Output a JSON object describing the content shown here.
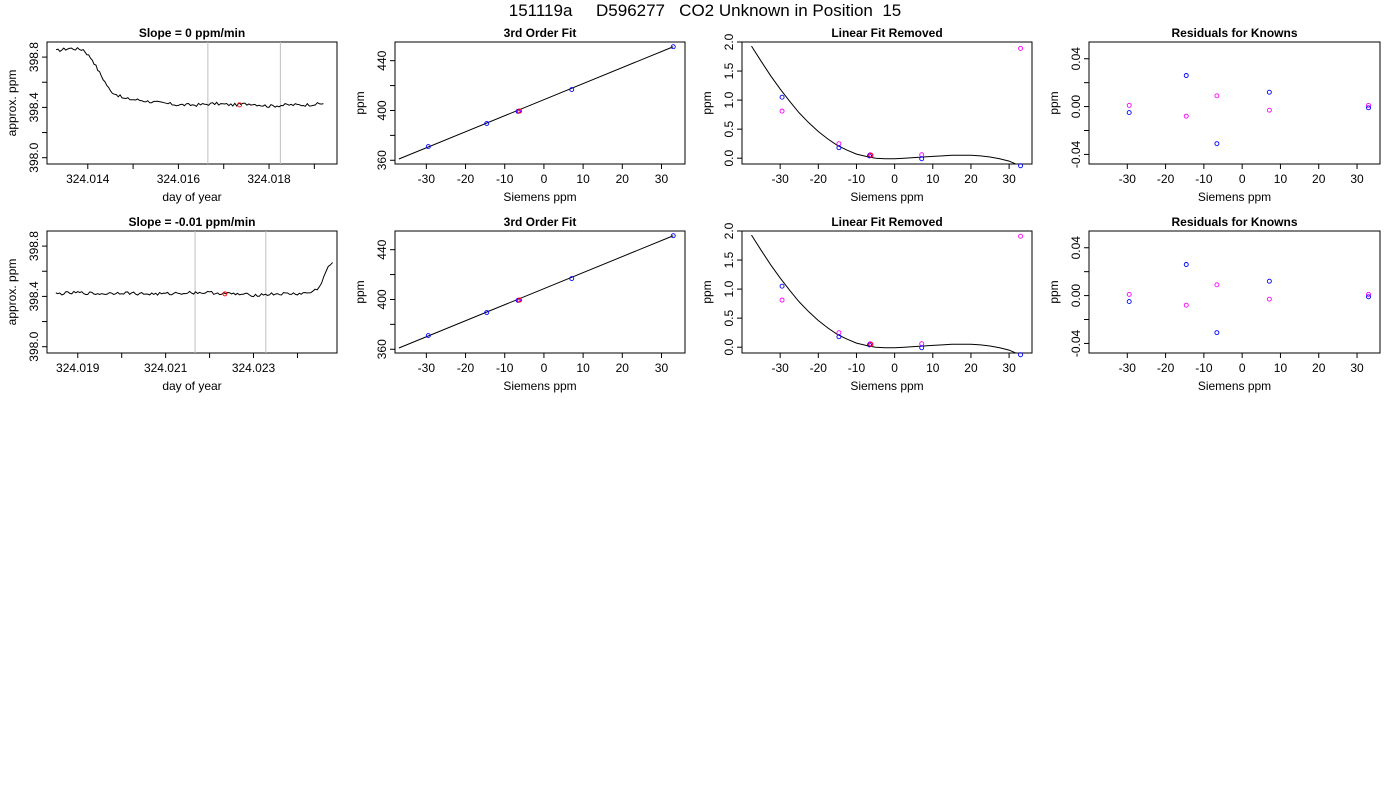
{
  "title": "151119a     D596277   CO2 Unknown in Position  15",
  "colors": {
    "known": "#0000ff",
    "prev": "#ff00ff",
    "unknown": "#ff0000",
    "vline": "#bebebe",
    "line": "#000000"
  },
  "chart_data": [
    {
      "type": "line",
      "title": "Slope =  0  ppm/min",
      "xlabel": "day of year",
      "ylabel": "approx. ppm",
      "xlim": [
        324.0131,
        324.0195
      ],
      "ylim": [
        397.95,
        398.92
      ],
      "xticks": [
        324.014,
        324.015,
        324.016,
        324.017,
        324.018,
        324.019
      ],
      "xtick_labels": [
        "324.014",
        "",
        "324.016",
        "",
        "324.018",
        ""
      ],
      "yticks": [
        398.0,
        398.2,
        398.4,
        398.6,
        398.8
      ],
      "ytick_labels": [
        "398.0",
        "",
        "398.4",
        "",
        "398.8"
      ],
      "vlines": [
        324.01665,
        324.01825
      ],
      "trace": [
        [
          324.0133,
          398.85
        ],
        [
          324.0136,
          398.87
        ],
        [
          324.0139,
          398.86
        ],
        [
          324.0141,
          398.78
        ],
        [
          324.0143,
          398.65
        ],
        [
          324.0145,
          398.53
        ],
        [
          324.0148,
          398.47
        ],
        [
          324.0151,
          398.46
        ],
        [
          324.0155,
          398.44
        ],
        [
          324.016,
          398.42
        ],
        [
          324.0164,
          398.42
        ],
        [
          324.0168,
          398.43
        ],
        [
          324.0172,
          398.42
        ],
        [
          324.0176,
          398.43
        ],
        [
          324.018,
          398.41
        ],
        [
          324.0184,
          398.42
        ],
        [
          324.0188,
          398.42
        ],
        [
          324.0192,
          398.43
        ]
      ],
      "noise": 0.012,
      "unknown_points": [
        [
          324.01735,
          398.42
        ]
      ]
    },
    {
      "type": "scatter",
      "title": "3rd Order Fit",
      "xlabel": "Siemens ppm",
      "ylabel": "ppm",
      "xlim": [
        -38,
        36
      ],
      "ylim": [
        357,
        455
      ],
      "xticks": [
        -30,
        -20,
        -10,
        0,
        10,
        20,
        30
      ],
      "xtick_labels": [
        "-30",
        "-20",
        "-10",
        "0",
        "10",
        "20",
        "30"
      ],
      "yticks": [
        360,
        380,
        400,
        420,
        440
      ],
      "ytick_labels": [
        "360",
        "",
        "400",
        "",
        "440"
      ],
      "line": [
        [
          -37,
          361
        ],
        [
          33,
          451.2
        ]
      ],
      "known_points": [
        [
          -29.5,
          371
        ],
        [
          -14.6,
          389.5
        ],
        [
          -6.6,
          399.3
        ],
        [
          7.1,
          416.8
        ],
        [
          33.0,
          451.2
        ]
      ],
      "prev_points": [
        [
          -6.4,
          399.5
        ]
      ],
      "unknown_points": [
        [
          -6.2,
          399.5
        ]
      ]
    },
    {
      "type": "scatter",
      "title": "Linear Fit Removed",
      "xlabel": "Siemens ppm",
      "ylabel": "ppm",
      "xlim": [
        -40,
        36
      ],
      "ylim": [
        -0.1,
        2.0
      ],
      "xticks": [
        -30,
        -20,
        -10,
        0,
        10,
        20,
        30
      ],
      "xtick_labels": [
        "-30",
        "-20",
        "-10",
        "0",
        "10",
        "20",
        "30"
      ],
      "yticks": [
        0.0,
        0.5,
        1.0,
        1.5,
        2.0
      ],
      "ytick_labels": [
        "0.0",
        "0.5",
        "1.0",
        "1.5",
        "2.0"
      ],
      "curve": [
        [
          -37.5,
          1.93
        ],
        [
          -35,
          1.67
        ],
        [
          -32.5,
          1.42
        ],
        [
          -30,
          1.19
        ],
        [
          -27.5,
          0.98
        ],
        [
          -25,
          0.78
        ],
        [
          -22.5,
          0.61
        ],
        [
          -20,
          0.46
        ],
        [
          -17.5,
          0.33
        ],
        [
          -15,
          0.22
        ],
        [
          -12.5,
          0.14
        ],
        [
          -10,
          0.07
        ],
        [
          -7.5,
          0.03
        ],
        [
          -5,
          0.0
        ],
        [
          -2.5,
          -0.01
        ],
        [
          0,
          -0.01
        ],
        [
          2.5,
          0.0
        ],
        [
          5,
          0.01
        ],
        [
          7.5,
          0.02
        ],
        [
          10,
          0.03
        ],
        [
          12.5,
          0.04
        ],
        [
          15,
          0.05
        ],
        [
          17.5,
          0.05
        ],
        [
          20,
          0.05
        ],
        [
          22.5,
          0.04
        ],
        [
          25,
          0.02
        ],
        [
          27.5,
          -0.01
        ],
        [
          30,
          -0.05
        ],
        [
          32.5,
          -0.12
        ]
      ],
      "known_points": [
        [
          -29.5,
          1.05
        ],
        [
          -14.6,
          0.18
        ],
        [
          -6.6,
          0.04
        ],
        [
          7.1,
          -0.01
        ],
        [
          33.0,
          -0.13
        ]
      ],
      "prev_points": [
        [
          -29.5,
          0.81
        ],
        [
          -14.6,
          0.25
        ],
        [
          -6.4,
          0.06
        ],
        [
          7.1,
          0.06
        ],
        [
          33.0,
          1.89
        ]
      ],
      "unknown_points": [
        [
          -6.2,
          0.05
        ]
      ]
    },
    {
      "type": "scatter",
      "title": "Residuals for Knowns",
      "xlabel": "Siemens ppm",
      "ylabel": "ppm",
      "xlim": [
        -40,
        36
      ],
      "ylim": [
        -0.048,
        0.054
      ],
      "xticks": [
        -30,
        -20,
        -10,
        0,
        10,
        20,
        30
      ],
      "xtick_labels": [
        "-30",
        "-20",
        "-10",
        "0",
        "10",
        "20",
        "30"
      ],
      "yticks": [
        -0.04,
        -0.02,
        0.0,
        0.02,
        0.04
      ],
      "ytick_labels": [
        "-0.04",
        "",
        "0.00",
        "",
        "0.04"
      ],
      "known_points": [
        [
          -29.5,
          -0.005
        ],
        [
          -14.6,
          0.026
        ],
        [
          -6.6,
          -0.031
        ],
        [
          7.1,
          0.012
        ],
        [
          33.0,
          -0.001
        ]
      ],
      "prev_points": [
        [
          -29.5,
          0.001
        ],
        [
          -14.6,
          -0.008
        ],
        [
          -6.6,
          0.009
        ],
        [
          7.1,
          -0.003
        ],
        [
          33.0,
          0.001
        ]
      ]
    },
    {
      "type": "line",
      "title": "Slope =  -0.01  ppm/min",
      "xlabel": "day of year",
      "ylabel": "approx. ppm",
      "xlim": [
        324.0183,
        324.0249
      ],
      "ylim": [
        397.95,
        398.92
      ],
      "xticks": [
        324.019,
        324.02,
        324.021,
        324.022,
        324.023,
        324.024
      ],
      "xtick_labels": [
        "324.019",
        "",
        "324.021",
        "",
        "324.023",
        ""
      ],
      "yticks": [
        398.0,
        398.2,
        398.4,
        398.6,
        398.8
      ],
      "ytick_labels": [
        "398.0",
        "",
        "398.4",
        "",
        "398.8"
      ],
      "vlines": [
        324.02167,
        324.02328
      ],
      "trace": [
        [
          324.0185,
          398.42
        ],
        [
          324.019,
          398.43
        ],
        [
          324.0195,
          398.42
        ],
        [
          324.02,
          398.43
        ],
        [
          324.0205,
          398.42
        ],
        [
          324.021,
          398.42
        ],
        [
          324.0215,
          398.43
        ],
        [
          324.022,
          398.43
        ],
        [
          324.0225,
          398.42
        ],
        [
          324.023,
          398.41
        ],
        [
          324.0235,
          398.42
        ],
        [
          324.024,
          398.42
        ],
        [
          324.0243,
          398.43
        ],
        [
          324.0245,
          398.47
        ],
        [
          324.0246,
          398.56
        ],
        [
          324.0247,
          398.63
        ],
        [
          324.0248,
          398.67
        ]
      ],
      "noise": 0.012,
      "unknown_points": [
        [
          324.02235,
          398.42
        ]
      ]
    },
    {
      "type": "scatter",
      "title": "3rd Order Fit",
      "xlabel": "Siemens ppm",
      "ylabel": "ppm",
      "xlim": [
        -38,
        36
      ],
      "ylim": [
        357,
        455
      ],
      "xticks": [
        -30,
        -20,
        -10,
        0,
        10,
        20,
        30
      ],
      "xtick_labels": [
        "-30",
        "-20",
        "-10",
        "0",
        "10",
        "20",
        "30"
      ],
      "yticks": [
        360,
        380,
        400,
        420,
        440
      ],
      "ytick_labels": [
        "360",
        "",
        "400",
        "",
        "440"
      ],
      "line": [
        [
          -37,
          361
        ],
        [
          33,
          451.2
        ]
      ],
      "known_points": [
        [
          -29.5,
          371
        ],
        [
          -14.6,
          389.5
        ],
        [
          -6.6,
          399.3
        ],
        [
          7.1,
          416.8
        ],
        [
          33.0,
          451.2
        ]
      ],
      "prev_points": [
        [
          -6.4,
          399.5
        ]
      ],
      "unknown_points": [
        [
          -6.2,
          399.5
        ]
      ]
    },
    {
      "type": "scatter",
      "title": "Linear Fit Removed",
      "xlabel": "Siemens ppm",
      "ylabel": "ppm",
      "xlim": [
        -40,
        36
      ],
      "ylim": [
        -0.1,
        2.0
      ],
      "xticks": [
        -30,
        -20,
        -10,
        0,
        10,
        20,
        30
      ],
      "xtick_labels": [
        "-30",
        "-20",
        "-10",
        "0",
        "10",
        "20",
        "30"
      ],
      "yticks": [
        0.0,
        0.5,
        1.0,
        1.5,
        2.0
      ],
      "ytick_labels": [
        "0.0",
        "0.5",
        "1.0",
        "1.5",
        "2.0"
      ],
      "curve": [
        [
          -37.5,
          1.93
        ],
        [
          -35,
          1.67
        ],
        [
          -32.5,
          1.42
        ],
        [
          -30,
          1.19
        ],
        [
          -27.5,
          0.98
        ],
        [
          -25,
          0.78
        ],
        [
          -22.5,
          0.61
        ],
        [
          -20,
          0.46
        ],
        [
          -17.5,
          0.33
        ],
        [
          -15,
          0.22
        ],
        [
          -12.5,
          0.14
        ],
        [
          -10,
          0.07
        ],
        [
          -7.5,
          0.03
        ],
        [
          -5,
          0.0
        ],
        [
          -2.5,
          -0.01
        ],
        [
          0,
          -0.01
        ],
        [
          2.5,
          0.0
        ],
        [
          5,
          0.01
        ],
        [
          7.5,
          0.02
        ],
        [
          10,
          0.03
        ],
        [
          12.5,
          0.04
        ],
        [
          15,
          0.05
        ],
        [
          17.5,
          0.05
        ],
        [
          20,
          0.05
        ],
        [
          22.5,
          0.04
        ],
        [
          25,
          0.02
        ],
        [
          27.5,
          -0.01
        ],
        [
          30,
          -0.05
        ],
        [
          32.5,
          -0.12
        ]
      ],
      "known_points": [
        [
          -29.5,
          1.05
        ],
        [
          -14.6,
          0.18
        ],
        [
          -6.6,
          0.04
        ],
        [
          7.1,
          -0.01
        ],
        [
          33.0,
          -0.13
        ]
      ],
      "prev_points": [
        [
          -29.5,
          0.81
        ],
        [
          -14.6,
          0.25
        ],
        [
          -6.4,
          0.06
        ],
        [
          7.1,
          0.06
        ],
        [
          33.0,
          1.91
        ]
      ],
      "unknown_points": [
        [
          -6.2,
          0.05
        ]
      ]
    },
    {
      "type": "scatter",
      "title": "Residuals for Knowns",
      "xlabel": "Siemens ppm",
      "ylabel": "ppm",
      "xlim": [
        -40,
        36
      ],
      "ylim": [
        -0.048,
        0.054
      ],
      "xticks": [
        -30,
        -20,
        -10,
        0,
        10,
        20,
        30
      ],
      "xtick_labels": [
        "-30",
        "-20",
        "-10",
        "0",
        "10",
        "20",
        "30"
      ],
      "yticks": [
        -0.04,
        -0.02,
        0.0,
        0.02,
        0.04
      ],
      "ytick_labels": [
        "-0.04",
        "",
        "0.00",
        "",
        "0.04"
      ],
      "known_points": [
        [
          -29.5,
          -0.005
        ],
        [
          -14.6,
          0.026
        ],
        [
          -6.6,
          -0.031
        ],
        [
          7.1,
          0.012
        ],
        [
          33.0,
          -0.001
        ]
      ],
      "prev_points": [
        [
          -29.5,
          0.001
        ],
        [
          -14.6,
          -0.008
        ],
        [
          -6.6,
          0.009
        ],
        [
          7.1,
          -0.003
        ],
        [
          33.0,
          0.001
        ]
      ]
    }
  ]
}
